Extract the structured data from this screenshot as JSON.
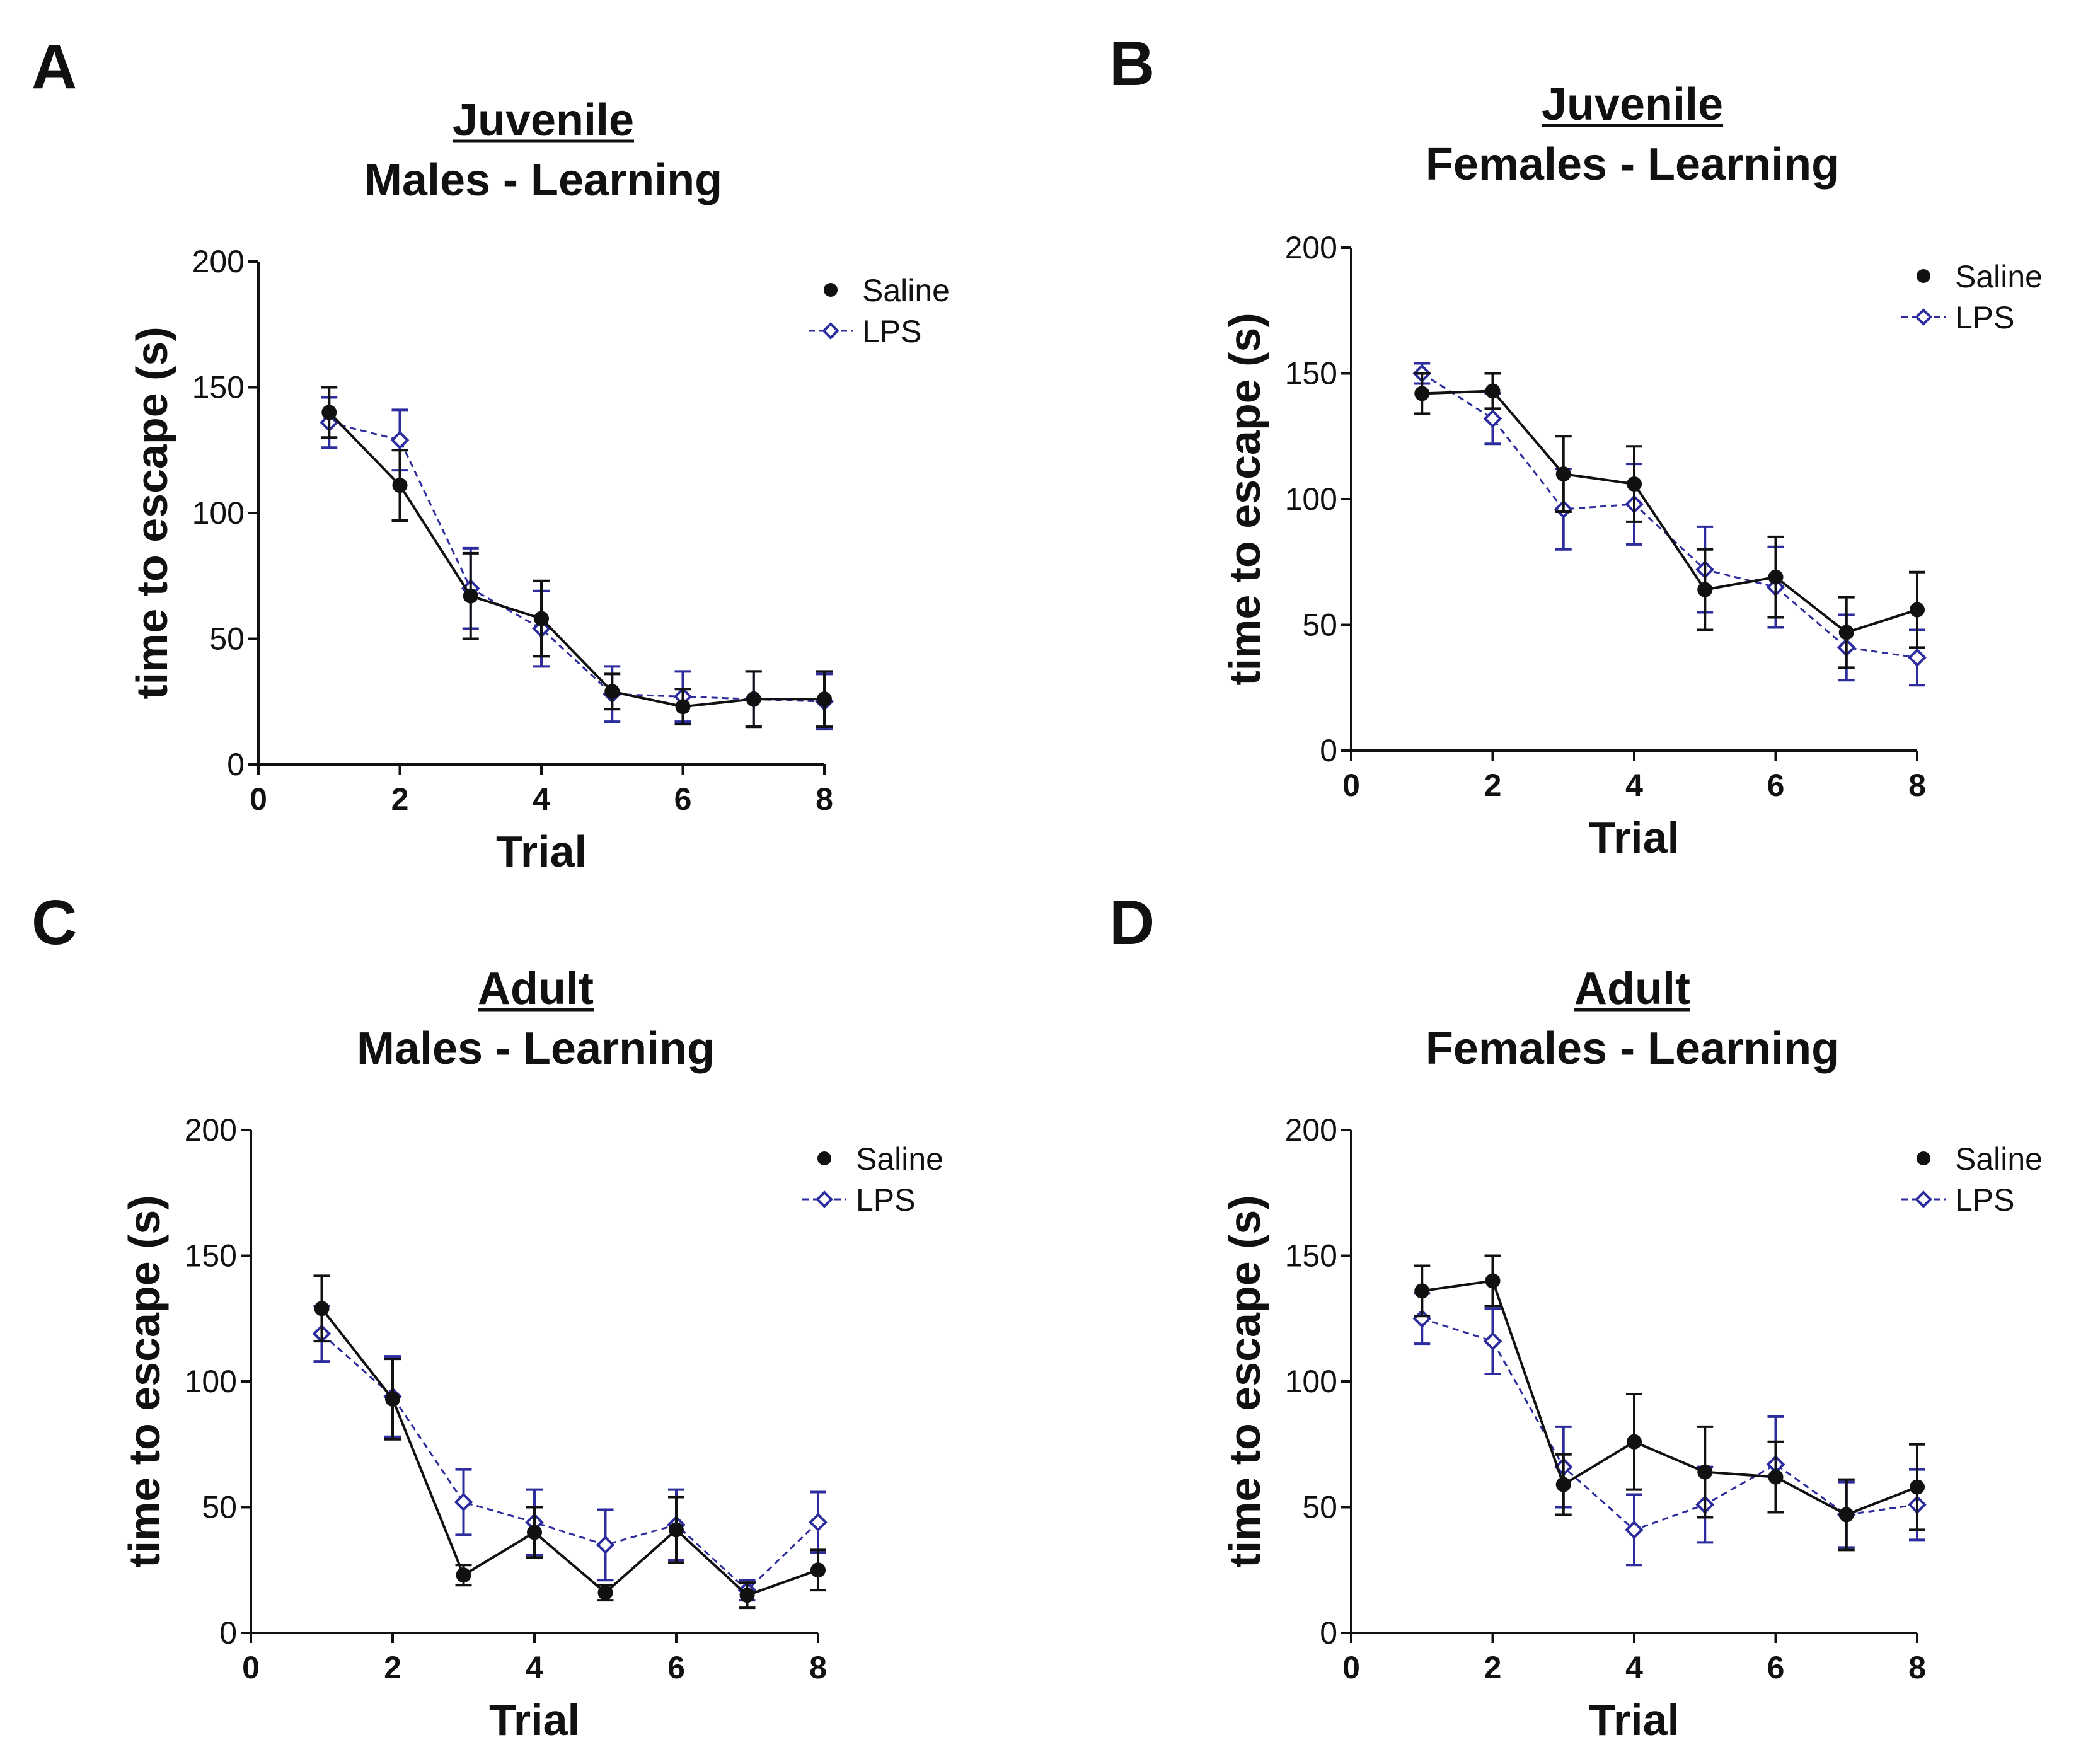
{
  "figure": {
    "panels": [
      "A",
      "B",
      "C",
      "D"
    ]
  },
  "chart_data": [
    {
      "panel": "A",
      "type": "line",
      "title_line1": "Juvenile",
      "title_line2": "Males - Learning",
      "xlabel": "Trial",
      "ylabel": "time to escape (s)",
      "xlim": [
        0,
        8
      ],
      "ylim": [
        0,
        200
      ],
      "xticks": [
        0,
        2,
        4,
        6,
        8
      ],
      "yticks": [
        0,
        50,
        100,
        150,
        200
      ],
      "x": [
        1,
        2,
        3,
        4,
        5,
        6,
        7,
        8
      ],
      "legend_position": "top-right",
      "series": [
        {
          "name": "Saline",
          "color": "#111111",
          "marker": "filled-circle",
          "linestyle": "solid",
          "values": [
            140,
            111,
            67,
            58,
            29,
            23,
            26,
            26
          ],
          "errors": [
            10,
            14,
            17,
            15,
            7,
            7,
            11,
            11
          ]
        },
        {
          "name": "LPS",
          "color": "#2c2c9e",
          "marker": "open-diamond",
          "linestyle": "dashed",
          "values": [
            136,
            129,
            70,
            54,
            28,
            27,
            26,
            25
          ],
          "errors": [
            10,
            12,
            16,
            15,
            11,
            10,
            11,
            11
          ]
        }
      ]
    },
    {
      "panel": "B",
      "type": "line",
      "title_line1": "Juvenile",
      "title_line2": "Females - Learning",
      "xlabel": "Trial",
      "ylabel": "time to escape (s)",
      "xlim": [
        0,
        8
      ],
      "ylim": [
        0,
        200
      ],
      "xticks": [
        0,
        2,
        4,
        6,
        8
      ],
      "yticks": [
        0,
        50,
        100,
        150,
        200
      ],
      "x": [
        1,
        2,
        3,
        4,
        5,
        6,
        7,
        8
      ],
      "legend_position": "top-right",
      "series": [
        {
          "name": "Saline",
          "color": "#111111",
          "marker": "filled-circle",
          "linestyle": "solid",
          "values": [
            142,
            143,
            110,
            106,
            64,
            69,
            47,
            56
          ],
          "errors": [
            8,
            7,
            15,
            15,
            16,
            16,
            14,
            15
          ]
        },
        {
          "name": "LPS",
          "color": "#2c2c9e",
          "marker": "open-diamond",
          "linestyle": "dashed",
          "values": [
            150,
            132,
            96,
            98,
            72,
            65,
            41,
            37
          ],
          "errors": [
            4,
            10,
            16,
            16,
            17,
            16,
            13,
            11
          ]
        }
      ]
    },
    {
      "panel": "C",
      "type": "line",
      "title_line1": "Adult",
      "title_line2": "Males - Learning",
      "xlabel": "Trial",
      "ylabel": "time to escape (s)",
      "xlim": [
        0,
        8
      ],
      "ylim": [
        0,
        200
      ],
      "xticks": [
        0,
        2,
        4,
        6,
        8
      ],
      "yticks": [
        0,
        50,
        100,
        150,
        200
      ],
      "x": [
        1,
        2,
        3,
        4,
        5,
        6,
        7,
        8
      ],
      "legend_position": "top-right",
      "series": [
        {
          "name": "Saline",
          "color": "#111111",
          "marker": "filled-circle",
          "linestyle": "solid",
          "values": [
            129,
            93,
            23,
            40,
            16,
            41,
            15,
            25
          ],
          "errors": [
            13,
            16,
            4,
            10,
            3,
            13,
            5,
            8
          ]
        },
        {
          "name": "LPS",
          "color": "#2c2c9e",
          "marker": "open-diamond",
          "linestyle": "dashed",
          "values": [
            119,
            94,
            52,
            44,
            35,
            43,
            17,
            44
          ],
          "errors": [
            11,
            16,
            13,
            13,
            14,
            14,
            4,
            12
          ]
        }
      ]
    },
    {
      "panel": "D",
      "type": "line",
      "title_line1": "Adult",
      "title_line2": "Females - Learning",
      "xlabel": "Trial",
      "ylabel": "time to escape (s)",
      "xlim": [
        0,
        8
      ],
      "ylim": [
        0,
        200
      ],
      "xticks": [
        0,
        2,
        4,
        6,
        8
      ],
      "yticks": [
        0,
        50,
        100,
        150,
        200
      ],
      "x": [
        1,
        2,
        3,
        4,
        5,
        6,
        7,
        8
      ],
      "legend_position": "top-right",
      "series": [
        {
          "name": "Saline",
          "color": "#111111",
          "marker": "filled-circle",
          "linestyle": "solid",
          "values": [
            136,
            140,
            59,
            76,
            64,
            62,
            47,
            58
          ],
          "errors": [
            10,
            10,
            12,
            19,
            18,
            14,
            14,
            17
          ]
        },
        {
          "name": "LPS",
          "color": "#2c2c9e",
          "marker": "open-diamond",
          "linestyle": "dashed",
          "values": [
            125,
            116,
            66,
            41,
            51,
            67,
            47,
            51
          ],
          "errors": [
            10,
            13,
            16,
            14,
            15,
            19,
            13,
            14
          ]
        }
      ]
    }
  ]
}
